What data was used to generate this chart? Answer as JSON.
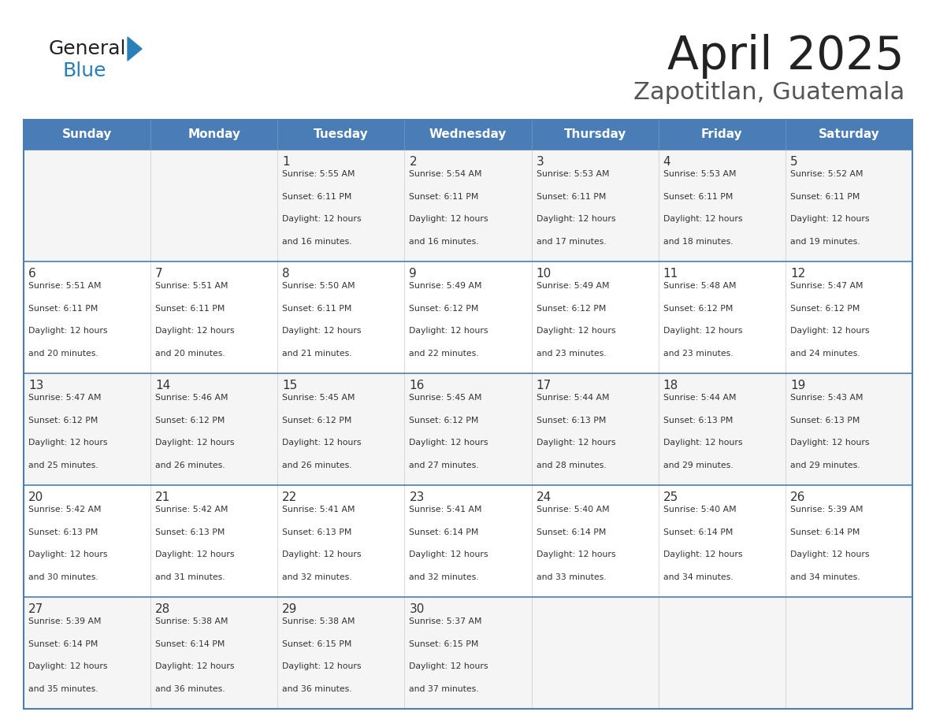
{
  "title": "April 2025",
  "subtitle": "Zapotitlan, Guatemala",
  "days_of_week": [
    "Sunday",
    "Monday",
    "Tuesday",
    "Wednesday",
    "Thursday",
    "Friday",
    "Saturday"
  ],
  "header_bg": "#4A7DB5",
  "header_text": "#FFFFFF",
  "cell_bg_odd": "#F5F5F5",
  "cell_bg_even": "#FFFFFF",
  "row_divider_color": "#4A7DB5",
  "outer_border_color": "#4A7DB5",
  "cell_border_color": "#CCCCCC",
  "text_color": "#333333",
  "day_num_color": "#333333",
  "logo_general_color": "#222222",
  "logo_blue_color": "#2980B9",
  "logo_triangle_color": "#2980B9",
  "title_color": "#222222",
  "subtitle_color": "#555555",
  "calendar_data": [
    [
      {
        "day": "",
        "sunrise": "",
        "sunset": "",
        "daylight_1": "",
        "daylight_2": ""
      },
      {
        "day": "",
        "sunrise": "",
        "sunset": "",
        "daylight_1": "",
        "daylight_2": ""
      },
      {
        "day": "1",
        "sunrise": "Sunrise: 5:55 AM",
        "sunset": "Sunset: 6:11 PM",
        "daylight_1": "Daylight: 12 hours",
        "daylight_2": "and 16 minutes."
      },
      {
        "day": "2",
        "sunrise": "Sunrise: 5:54 AM",
        "sunset": "Sunset: 6:11 PM",
        "daylight_1": "Daylight: 12 hours",
        "daylight_2": "and 16 minutes."
      },
      {
        "day": "3",
        "sunrise": "Sunrise: 5:53 AM",
        "sunset": "Sunset: 6:11 PM",
        "daylight_1": "Daylight: 12 hours",
        "daylight_2": "and 17 minutes."
      },
      {
        "day": "4",
        "sunrise": "Sunrise: 5:53 AM",
        "sunset": "Sunset: 6:11 PM",
        "daylight_1": "Daylight: 12 hours",
        "daylight_2": "and 18 minutes."
      },
      {
        "day": "5",
        "sunrise": "Sunrise: 5:52 AM",
        "sunset": "Sunset: 6:11 PM",
        "daylight_1": "Daylight: 12 hours",
        "daylight_2": "and 19 minutes."
      }
    ],
    [
      {
        "day": "6",
        "sunrise": "Sunrise: 5:51 AM",
        "sunset": "Sunset: 6:11 PM",
        "daylight_1": "Daylight: 12 hours",
        "daylight_2": "and 20 minutes."
      },
      {
        "day": "7",
        "sunrise": "Sunrise: 5:51 AM",
        "sunset": "Sunset: 6:11 PM",
        "daylight_1": "Daylight: 12 hours",
        "daylight_2": "and 20 minutes."
      },
      {
        "day": "8",
        "sunrise": "Sunrise: 5:50 AM",
        "sunset": "Sunset: 6:11 PM",
        "daylight_1": "Daylight: 12 hours",
        "daylight_2": "and 21 minutes."
      },
      {
        "day": "9",
        "sunrise": "Sunrise: 5:49 AM",
        "sunset": "Sunset: 6:12 PM",
        "daylight_1": "Daylight: 12 hours",
        "daylight_2": "and 22 minutes."
      },
      {
        "day": "10",
        "sunrise": "Sunrise: 5:49 AM",
        "sunset": "Sunset: 6:12 PM",
        "daylight_1": "Daylight: 12 hours",
        "daylight_2": "and 23 minutes."
      },
      {
        "day": "11",
        "sunrise": "Sunrise: 5:48 AM",
        "sunset": "Sunset: 6:12 PM",
        "daylight_1": "Daylight: 12 hours",
        "daylight_2": "and 23 minutes."
      },
      {
        "day": "12",
        "sunrise": "Sunrise: 5:47 AM",
        "sunset": "Sunset: 6:12 PM",
        "daylight_1": "Daylight: 12 hours",
        "daylight_2": "and 24 minutes."
      }
    ],
    [
      {
        "day": "13",
        "sunrise": "Sunrise: 5:47 AM",
        "sunset": "Sunset: 6:12 PM",
        "daylight_1": "Daylight: 12 hours",
        "daylight_2": "and 25 minutes."
      },
      {
        "day": "14",
        "sunrise": "Sunrise: 5:46 AM",
        "sunset": "Sunset: 6:12 PM",
        "daylight_1": "Daylight: 12 hours",
        "daylight_2": "and 26 minutes."
      },
      {
        "day": "15",
        "sunrise": "Sunrise: 5:45 AM",
        "sunset": "Sunset: 6:12 PM",
        "daylight_1": "Daylight: 12 hours",
        "daylight_2": "and 26 minutes."
      },
      {
        "day": "16",
        "sunrise": "Sunrise: 5:45 AM",
        "sunset": "Sunset: 6:12 PM",
        "daylight_1": "Daylight: 12 hours",
        "daylight_2": "and 27 minutes."
      },
      {
        "day": "17",
        "sunrise": "Sunrise: 5:44 AM",
        "sunset": "Sunset: 6:13 PM",
        "daylight_1": "Daylight: 12 hours",
        "daylight_2": "and 28 minutes."
      },
      {
        "day": "18",
        "sunrise": "Sunrise: 5:44 AM",
        "sunset": "Sunset: 6:13 PM",
        "daylight_1": "Daylight: 12 hours",
        "daylight_2": "and 29 minutes."
      },
      {
        "day": "19",
        "sunrise": "Sunrise: 5:43 AM",
        "sunset": "Sunset: 6:13 PM",
        "daylight_1": "Daylight: 12 hours",
        "daylight_2": "and 29 minutes."
      }
    ],
    [
      {
        "day": "20",
        "sunrise": "Sunrise: 5:42 AM",
        "sunset": "Sunset: 6:13 PM",
        "daylight_1": "Daylight: 12 hours",
        "daylight_2": "and 30 minutes."
      },
      {
        "day": "21",
        "sunrise": "Sunrise: 5:42 AM",
        "sunset": "Sunset: 6:13 PM",
        "daylight_1": "Daylight: 12 hours",
        "daylight_2": "and 31 minutes."
      },
      {
        "day": "22",
        "sunrise": "Sunrise: 5:41 AM",
        "sunset": "Sunset: 6:13 PM",
        "daylight_1": "Daylight: 12 hours",
        "daylight_2": "and 32 minutes."
      },
      {
        "day": "23",
        "sunrise": "Sunrise: 5:41 AM",
        "sunset": "Sunset: 6:14 PM",
        "daylight_1": "Daylight: 12 hours",
        "daylight_2": "and 32 minutes."
      },
      {
        "day": "24",
        "sunrise": "Sunrise: 5:40 AM",
        "sunset": "Sunset: 6:14 PM",
        "daylight_1": "Daylight: 12 hours",
        "daylight_2": "and 33 minutes."
      },
      {
        "day": "25",
        "sunrise": "Sunrise: 5:40 AM",
        "sunset": "Sunset: 6:14 PM",
        "daylight_1": "Daylight: 12 hours",
        "daylight_2": "and 34 minutes."
      },
      {
        "day": "26",
        "sunrise": "Sunrise: 5:39 AM",
        "sunset": "Sunset: 6:14 PM",
        "daylight_1": "Daylight: 12 hours",
        "daylight_2": "and 34 minutes."
      }
    ],
    [
      {
        "day": "27",
        "sunrise": "Sunrise: 5:39 AM",
        "sunset": "Sunset: 6:14 PM",
        "daylight_1": "Daylight: 12 hours",
        "daylight_2": "and 35 minutes."
      },
      {
        "day": "28",
        "sunrise": "Sunrise: 5:38 AM",
        "sunset": "Sunset: 6:14 PM",
        "daylight_1": "Daylight: 12 hours",
        "daylight_2": "and 36 minutes."
      },
      {
        "day": "29",
        "sunrise": "Sunrise: 5:38 AM",
        "sunset": "Sunset: 6:15 PM",
        "daylight_1": "Daylight: 12 hours",
        "daylight_2": "and 36 minutes."
      },
      {
        "day": "30",
        "sunrise": "Sunrise: 5:37 AM",
        "sunset": "Sunset: 6:15 PM",
        "daylight_1": "Daylight: 12 hours",
        "daylight_2": "and 37 minutes."
      },
      {
        "day": "",
        "sunrise": "",
        "sunset": "",
        "daylight_1": "",
        "daylight_2": ""
      },
      {
        "day": "",
        "sunrise": "",
        "sunset": "",
        "daylight_1": "",
        "daylight_2": ""
      },
      {
        "day": "",
        "sunrise": "",
        "sunset": "",
        "daylight_1": "",
        "daylight_2": ""
      }
    ]
  ]
}
